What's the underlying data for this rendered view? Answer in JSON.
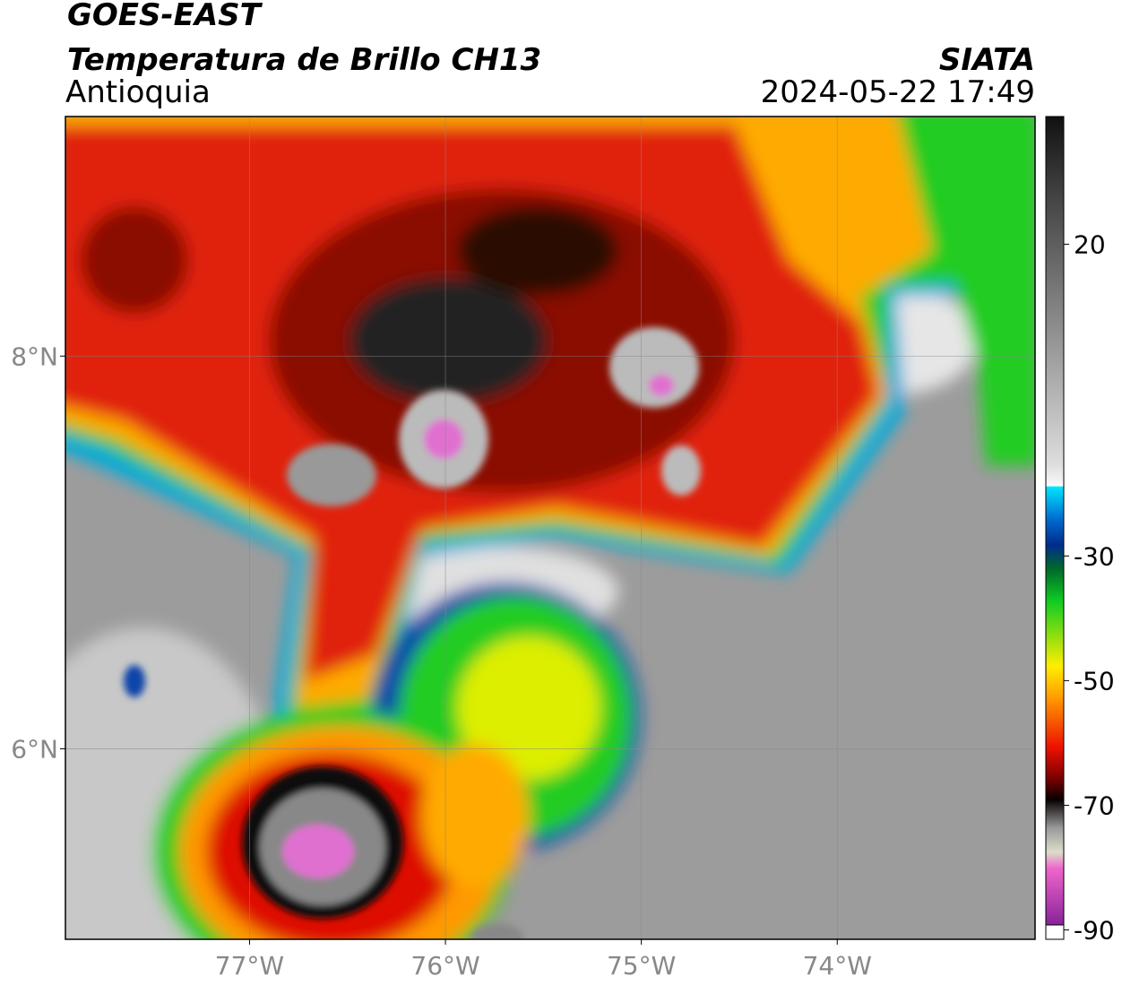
{
  "header": {
    "title": "GOES-EAST",
    "subtitle": "Temperatura de Brillo CH13",
    "region": "Antioquia",
    "source": "SIATA",
    "datetime": "2024-05-22 17:49"
  },
  "map": {
    "xlim": [
      -77.94,
      -72.99
    ],
    "ylim": [
      5.03,
      9.22
    ],
    "xticks": [
      {
        "value": -77,
        "label": "77°W"
      },
      {
        "value": -76,
        "label": "76°W"
      },
      {
        "value": -75,
        "label": "75°W"
      },
      {
        "value": -74,
        "label": "74°W"
      }
    ],
    "yticks": [
      {
        "value": 8,
        "label": "8°N"
      },
      {
        "value": 6,
        "label": "6°N"
      }
    ]
  },
  "colorbar": {
    "lim": [
      -91.5,
      40.5
    ],
    "ticks": [
      20,
      -30,
      -50,
      -70,
      -90
    ]
  }
}
